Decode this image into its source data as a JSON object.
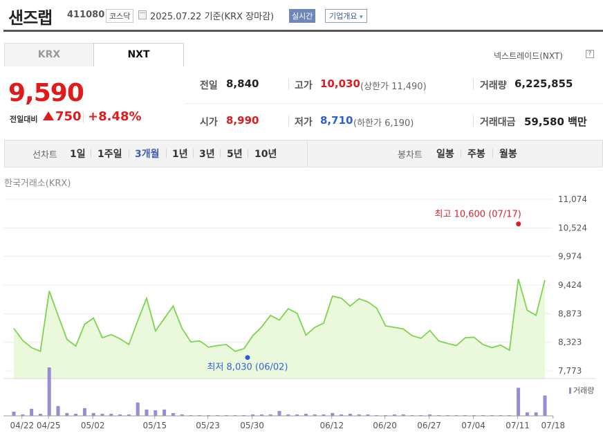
{
  "header": {
    "stock_name": "샌즈랩",
    "stock_code": "411080",
    "market": "코스닥",
    "basis_date": "2025.07.22  기준(KRX 장마감)",
    "realtime_label": "실시간",
    "overview_label": "기업개요",
    "overview_arrow": "▾"
  },
  "tabs": [
    {
      "label": "KRX",
      "active": false
    },
    {
      "label": "NXT",
      "active": true
    }
  ],
  "nxt_label": "넥스트레이드(NXT)",
  "help_glyph": "?",
  "price": {
    "current": "9,590",
    "change_label": "전일대비",
    "change_amount": "750",
    "change_percent": "+8.48%",
    "direction": "up"
  },
  "quotes": {
    "prev_close": {
      "label": "전일",
      "value": "8,840"
    },
    "high": {
      "label": "고가",
      "value": "10,030",
      "sub": "(상한가 11,490)"
    },
    "volume": {
      "label": "거래량",
      "value": "6,225,855"
    },
    "open": {
      "label": "시가",
      "value": "8,990"
    },
    "low": {
      "label": "저가",
      "value": "8,710",
      "sub": "(하한가 6,190)"
    },
    "trade_value": {
      "label": "거래대금",
      "value": "59,580 백만"
    }
  },
  "period_bar": {
    "line_label": "선차트",
    "line_periods": [
      "1일",
      "1주일",
      "3개월",
      "1년",
      "3년",
      "5년",
      "10년"
    ],
    "active_period": "3개월",
    "candle_label": "봉차트",
    "candle_periods": [
      "일봉",
      "주봉",
      "월봉"
    ]
  },
  "exchange_label": "한국거래소(KRX)",
  "colors": {
    "up": "#e01b1b",
    "down": "#2b5fd1",
    "line": "#7ed34e",
    "fill": "#eaf9dc",
    "volume": "#9b8ad6"
  },
  "chart_data": {
    "type": "line",
    "y_ticks": [
      "11,074",
      "10,524",
      "9,974",
      "9,424",
      "8,873",
      "8,323",
      "7,773"
    ],
    "ylim": [
      7773,
      11074
    ],
    "x_ticks": [
      "04/22",
      "04/25",
      "05/02",
      "05/15",
      "05/23",
      "05/30",
      "06/12",
      "06/20",
      "06/27",
      "07/04",
      "07/11",
      "07/18"
    ],
    "close": [
      8590,
      8360,
      8220,
      8150,
      9310,
      8840,
      8380,
      8250,
      8670,
      8790,
      8410,
      8470,
      8390,
      8280,
      8740,
      9170,
      8540,
      8780,
      9020,
      8590,
      8330,
      8350,
      8230,
      8260,
      8280,
      8150,
      8200,
      8450,
      8620,
      8840,
      8750,
      8970,
      8880,
      8460,
      8610,
      8690,
      9210,
      9170,
      9020,
      9160,
      9100,
      8980,
      8640,
      8610,
      8580,
      8450,
      8400,
      8550,
      8350,
      8300,
      8260,
      8410,
      8420,
      8280,
      8220,
      8270,
      8170,
      9540,
      8940,
      8840,
      9520
    ],
    "volume": [
      6,
      2,
      10,
      3,
      69,
      14,
      4,
      3,
      11,
      4,
      3,
      3,
      2,
      2,
      19,
      9,
      8,
      9,
      4,
      2,
      1,
      1,
      1,
      1,
      1,
      1,
      1,
      2,
      2,
      2,
      7,
      2,
      2,
      3,
      2,
      2,
      4,
      2,
      3,
      2,
      2,
      1,
      1,
      2,
      2,
      1,
      1,
      2,
      1,
      1,
      1,
      1,
      1,
      1,
      1,
      1,
      1,
      40,
      5,
      5,
      29
    ],
    "max_label": "최고 10,600 (07/17)",
    "max_value": 10600,
    "max_index": 56,
    "min_label": "최저 8,030 (06/02)",
    "min_value": 8030,
    "min_index": 25,
    "volume_legend": "거래량"
  }
}
